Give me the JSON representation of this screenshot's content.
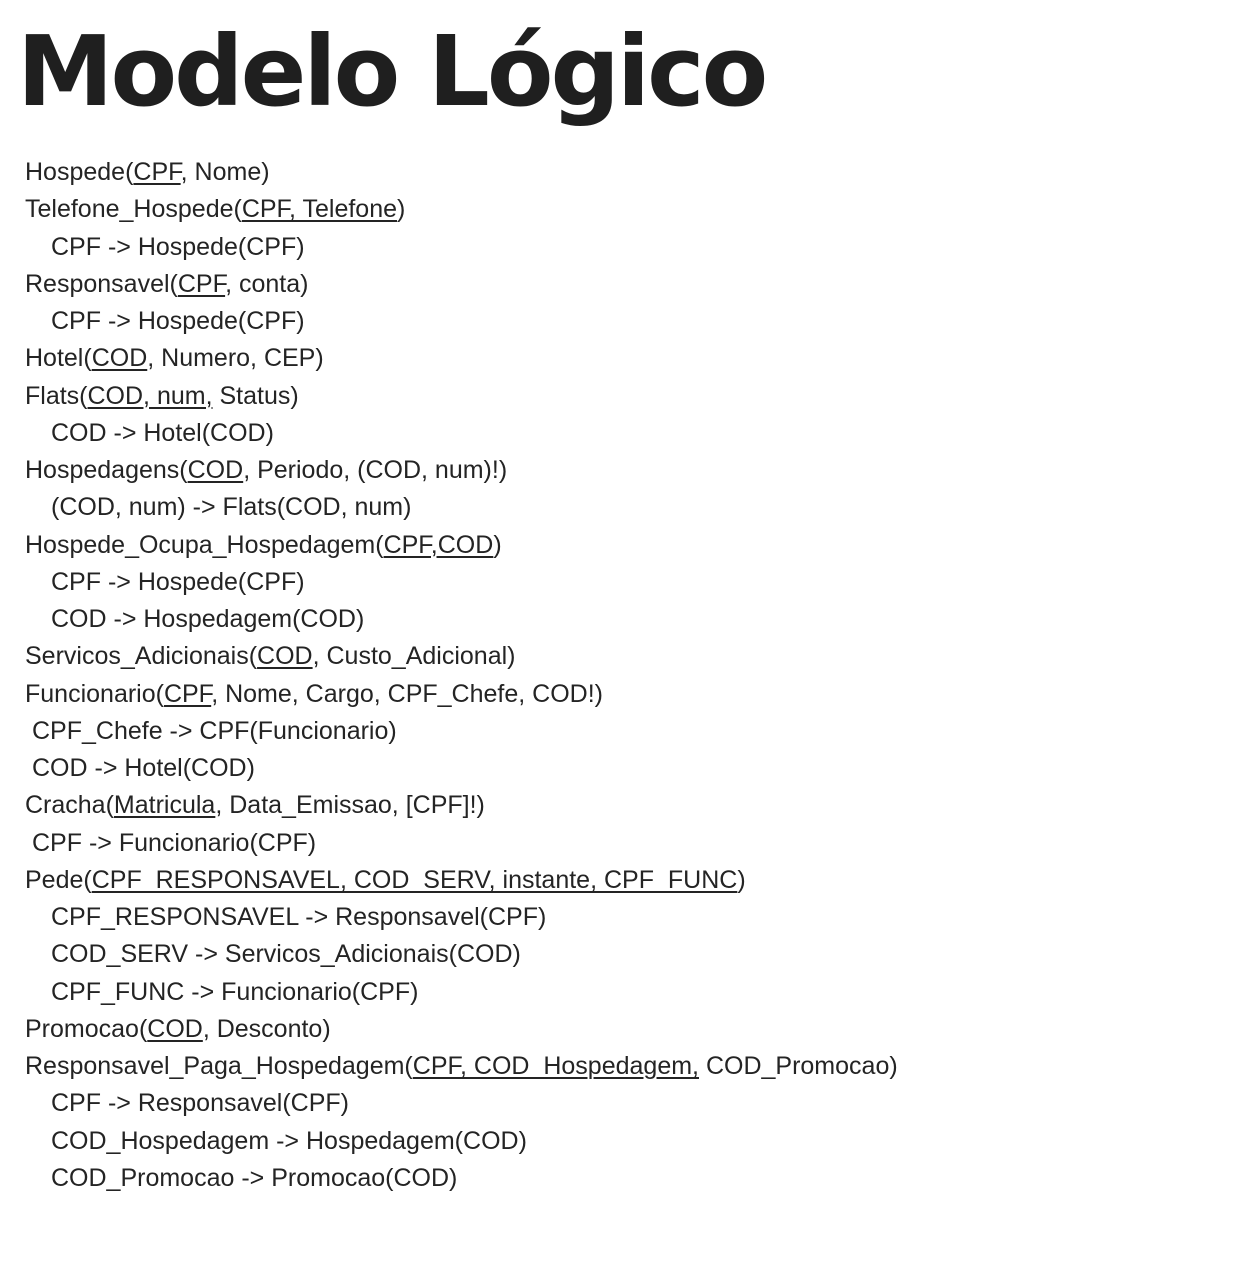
{
  "title": "Modelo Lógico",
  "lines": [
    {
      "name": "relation-hospede",
      "kind": "relation",
      "parts": [
        {
          "t": "Hospede("
        },
        {
          "t": "CPF",
          "u": true
        },
        {
          "t": ", Nome)"
        }
      ]
    },
    {
      "name": "relation-telefone-hospede",
      "kind": "relation",
      "parts": [
        {
          "t": "Telefone_Hospede("
        },
        {
          "t": "CPF, Telefone",
          "u": true
        },
        {
          "t": ")"
        }
      ]
    },
    {
      "name": "foreign-key",
      "kind": "fk",
      "parts": [
        {
          "t": "CPF -> Hospede(CPF)"
        }
      ]
    },
    {
      "name": "relation-responsavel",
      "kind": "relation",
      "parts": [
        {
          "t": "Responsavel("
        },
        {
          "t": "CPF",
          "u": true
        },
        {
          "t": ", conta)"
        }
      ]
    },
    {
      "name": "foreign-key",
      "kind": "fk",
      "parts": [
        {
          "t": "CPF -> Hospede(CPF)"
        }
      ]
    },
    {
      "name": "relation-hotel",
      "kind": "relation",
      "parts": [
        {
          "t": "Hotel("
        },
        {
          "t": "COD",
          "u": true
        },
        {
          "t": ", Numero, CEP)"
        }
      ]
    },
    {
      "name": "relation-flats",
      "kind": "relation",
      "parts": [
        {
          "t": "Flats("
        },
        {
          "t": "COD, num,",
          "u": true
        },
        {
          "t": " Status)"
        }
      ]
    },
    {
      "name": "foreign-key",
      "kind": "fk",
      "parts": [
        {
          "t": "COD -> Hotel(COD)"
        }
      ]
    },
    {
      "name": "relation-hospedagens",
      "kind": "relation",
      "parts": [
        {
          "t": "Hospedagens("
        },
        {
          "t": "COD",
          "u": true
        },
        {
          "t": ", Periodo, (COD, num)!)"
        }
      ]
    },
    {
      "name": "foreign-key",
      "kind": "fk",
      "parts": [
        {
          "t": "(COD, num) -> Flats(COD, num)"
        }
      ]
    },
    {
      "name": "relation-hospede-ocupa-hospedagem",
      "kind": "relation",
      "parts": [
        {
          "t": "Hospede_Ocupa_Hospedagem("
        },
        {
          "t": "CPF,COD",
          "u": true
        },
        {
          "t": ")"
        }
      ]
    },
    {
      "name": "foreign-key",
      "kind": "fk",
      "parts": [
        {
          "t": "CPF -> Hospede(CPF)"
        }
      ]
    },
    {
      "name": "foreign-key",
      "kind": "fk",
      "parts": [
        {
          "t": "COD -> Hospedagem(COD)"
        }
      ]
    },
    {
      "name": "relation-servicos-adicionais",
      "kind": "relation",
      "parts": [
        {
          "t": "Servicos_Adicionais("
        },
        {
          "t": "COD",
          "u": true
        },
        {
          "t": ", Custo_Adicional)"
        }
      ]
    },
    {
      "name": "relation-funcionario",
      "kind": "relation",
      "parts": [
        {
          "t": "Funcionario("
        },
        {
          "t": "CPF",
          "u": true
        },
        {
          "t": ", Nome, Cargo, CPF_Chefe, COD!)"
        }
      ]
    },
    {
      "name": "foreign-key",
      "kind": "fk2",
      "parts": [
        {
          "t": "CPF_Chefe -> CPF(Funcionario)"
        }
      ]
    },
    {
      "name": "foreign-key",
      "kind": "fk2",
      "parts": [
        {
          "t": "COD -> Hotel(COD)"
        }
      ]
    },
    {
      "name": "relation-cracha",
      "kind": "relation",
      "parts": [
        {
          "t": "Cracha("
        },
        {
          "t": "Matricula",
          "u": true
        },
        {
          "t": ", Data_Emissao, [CPF]!)"
        }
      ]
    },
    {
      "name": "foreign-key",
      "kind": "fk2",
      "parts": [
        {
          "t": "CPF -> Funcionario(CPF)"
        }
      ]
    },
    {
      "name": "relation-pede",
      "kind": "relation",
      "parts": [
        {
          "t": "Pede("
        },
        {
          "t": "CPF_RESPONSAVEL, COD_SERV, instante, CPF_FUNC",
          "u": true
        },
        {
          "t": ")"
        }
      ]
    },
    {
      "name": "foreign-key",
      "kind": "fk",
      "parts": [
        {
          "t": "CPF_RESPONSAVEL -> Responsavel(CPF)"
        }
      ]
    },
    {
      "name": "foreign-key",
      "kind": "fk",
      "parts": [
        {
          "t": "COD_SERV -> Servicos_Adicionais(COD)"
        }
      ]
    },
    {
      "name": "foreign-key",
      "kind": "fk",
      "parts": [
        {
          "t": "CPF_FUNC -> Funcionario(CPF)"
        }
      ]
    },
    {
      "name": "relation-promocao",
      "kind": "relation",
      "parts": [
        {
          "t": "Promocao("
        },
        {
          "t": "COD",
          "u": true
        },
        {
          "t": ", Desconto)"
        }
      ]
    },
    {
      "name": "relation-responsavel-paga-hospedagem",
      "kind": "relation",
      "parts": [
        {
          "t": "Responsavel_Paga_Hospedagem("
        },
        {
          "t": "CPF, COD_Hospedagem,",
          "u": true
        },
        {
          "t": " COD_Promocao)"
        }
      ]
    },
    {
      "name": "foreign-key",
      "kind": "fk",
      "parts": [
        {
          "t": "CPF -> Responsavel(CPF)"
        }
      ]
    },
    {
      "name": "foreign-key",
      "kind": "fk",
      "parts": [
        {
          "t": "COD_Hospedagem -> Hospedagem(COD)"
        }
      ]
    },
    {
      "name": "foreign-key",
      "kind": "fk",
      "parts": [
        {
          "t": "COD_Promocao -> Promocao(COD)"
        }
      ]
    }
  ]
}
